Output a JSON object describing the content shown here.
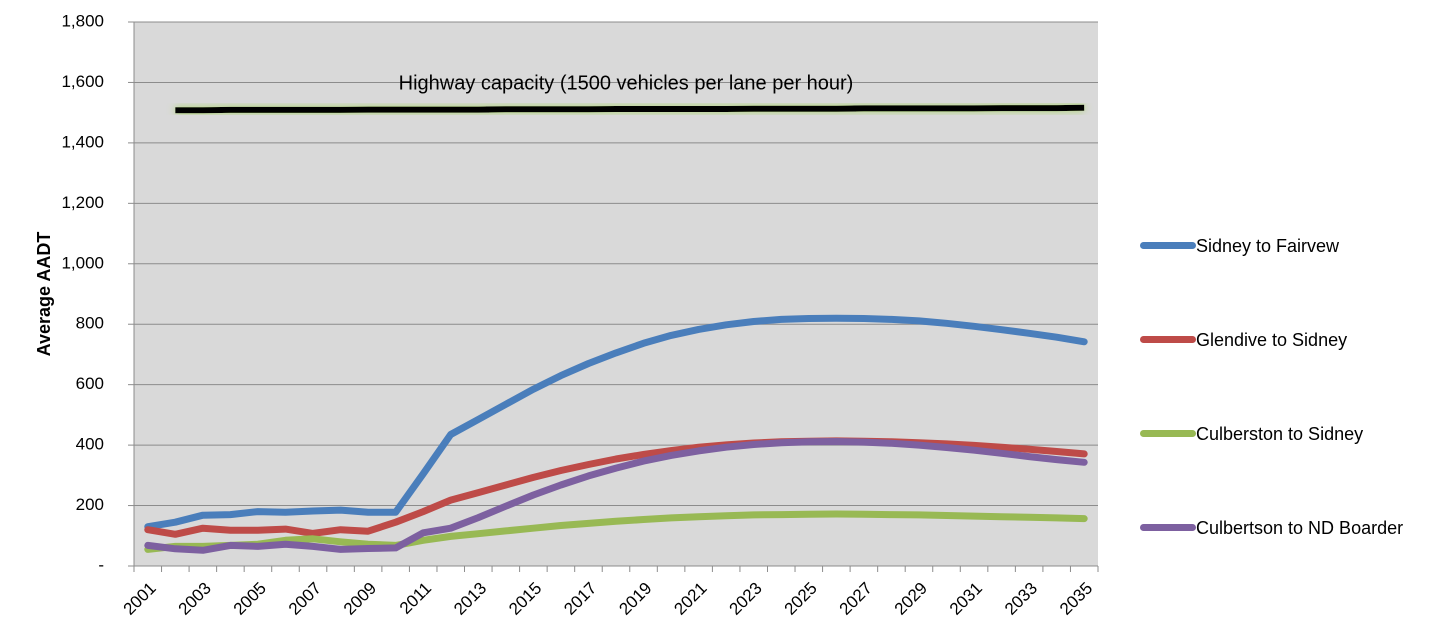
{
  "chart_data": {
    "type": "line",
    "ylabel": "Average AADT",
    "categories": [
      "2001",
      null,
      "2003",
      null,
      "2005",
      null,
      "2007",
      null,
      "2009",
      null,
      "2011",
      null,
      "2013",
      null,
      "2015",
      null,
      "2017",
      null,
      "2019",
      null,
      "2021",
      null,
      "2023",
      null,
      "2025",
      null,
      "2027",
      null,
      "2029",
      null,
      "2031",
      null,
      "2033",
      null,
      "2035"
    ],
    "ylim": [
      0,
      1800
    ],
    "yticks": [
      {
        "value": 0,
        "label": "-"
      },
      200,
      400,
      600,
      800,
      {
        "value": 1000,
        "label": "1,000"
      },
      {
        "value": 1200,
        "label": "1,200"
      },
      {
        "value": 1400,
        "label": "1,400"
      },
      {
        "value": 1600,
        "label": "1,600"
      },
      {
        "value": 1800,
        "label": "1,800"
      }
    ],
    "grid": true,
    "legend": "right",
    "series": [
      {
        "name": "Sidney to Fairvew",
        "color": "#4a7ebb",
        "values": [
          130,
          145,
          168,
          170,
          180,
          178,
          182,
          185,
          178,
          178,
          305,
          435,
          485,
          535,
          585,
          630,
          670,
          705,
          737,
          763,
          783,
          798,
          809,
          816,
          819,
          820,
          819,
          816,
          811,
          803,
          793,
          782,
          770,
          757,
          742
        ]
      },
      {
        "name": "Glendive to Sidney",
        "color": "#be4b48",
        "values": [
          120,
          105,
          125,
          118,
          118,
          122,
          108,
          120,
          115,
          145,
          180,
          218,
          243,
          268,
          293,
          316,
          336,
          354,
          369,
          382,
          393,
          401,
          407,
          411,
          413,
          414,
          413,
          411,
          408,
          404,
          399,
          393,
          386,
          379,
          371
        ]
      },
      {
        "name": "Culberston to Sidney",
        "color": "#98b954",
        "values": [
          55,
          65,
          65,
          68,
          72,
          85,
          90,
          80,
          72,
          68,
          85,
          98,
          107,
          116,
          125,
          134,
          141,
          148,
          154,
          159,
          163,
          166,
          169,
          170,
          171,
          172,
          171,
          170,
          169,
          167,
          165,
          163,
          161,
          159,
          157
        ]
      },
      {
        "name": "Culbertson to ND Boarder",
        "color": "#7d60a0",
        "values": [
          68,
          57,
          52,
          68,
          65,
          72,
          65,
          55,
          58,
          60,
          110,
          125,
          160,
          198,
          235,
          268,
          298,
          324,
          347,
          366,
          381,
          393,
          402,
          408,
          411,
          412,
          410,
          406,
          400,
          392,
          383,
          373,
          362,
          352,
          343
        ]
      }
    ],
    "annotation": {
      "text": "Highway capacity (1500 vehicles per lane per hour)",
      "color": "#000000",
      "values": [
        null,
        1508,
        1508,
        1509,
        1509,
        1509,
        1509,
        1509,
        1510,
        1510,
        1510,
        1510,
        1510,
        1511,
        1511,
        1511,
        1511,
        1512,
        1512,
        1512,
        1512,
        1512,
        1513,
        1513,
        1513,
        1513,
        1514,
        1514,
        1514,
        1514,
        1514,
        1515,
        1515,
        1515,
        1516
      ]
    }
  }
}
